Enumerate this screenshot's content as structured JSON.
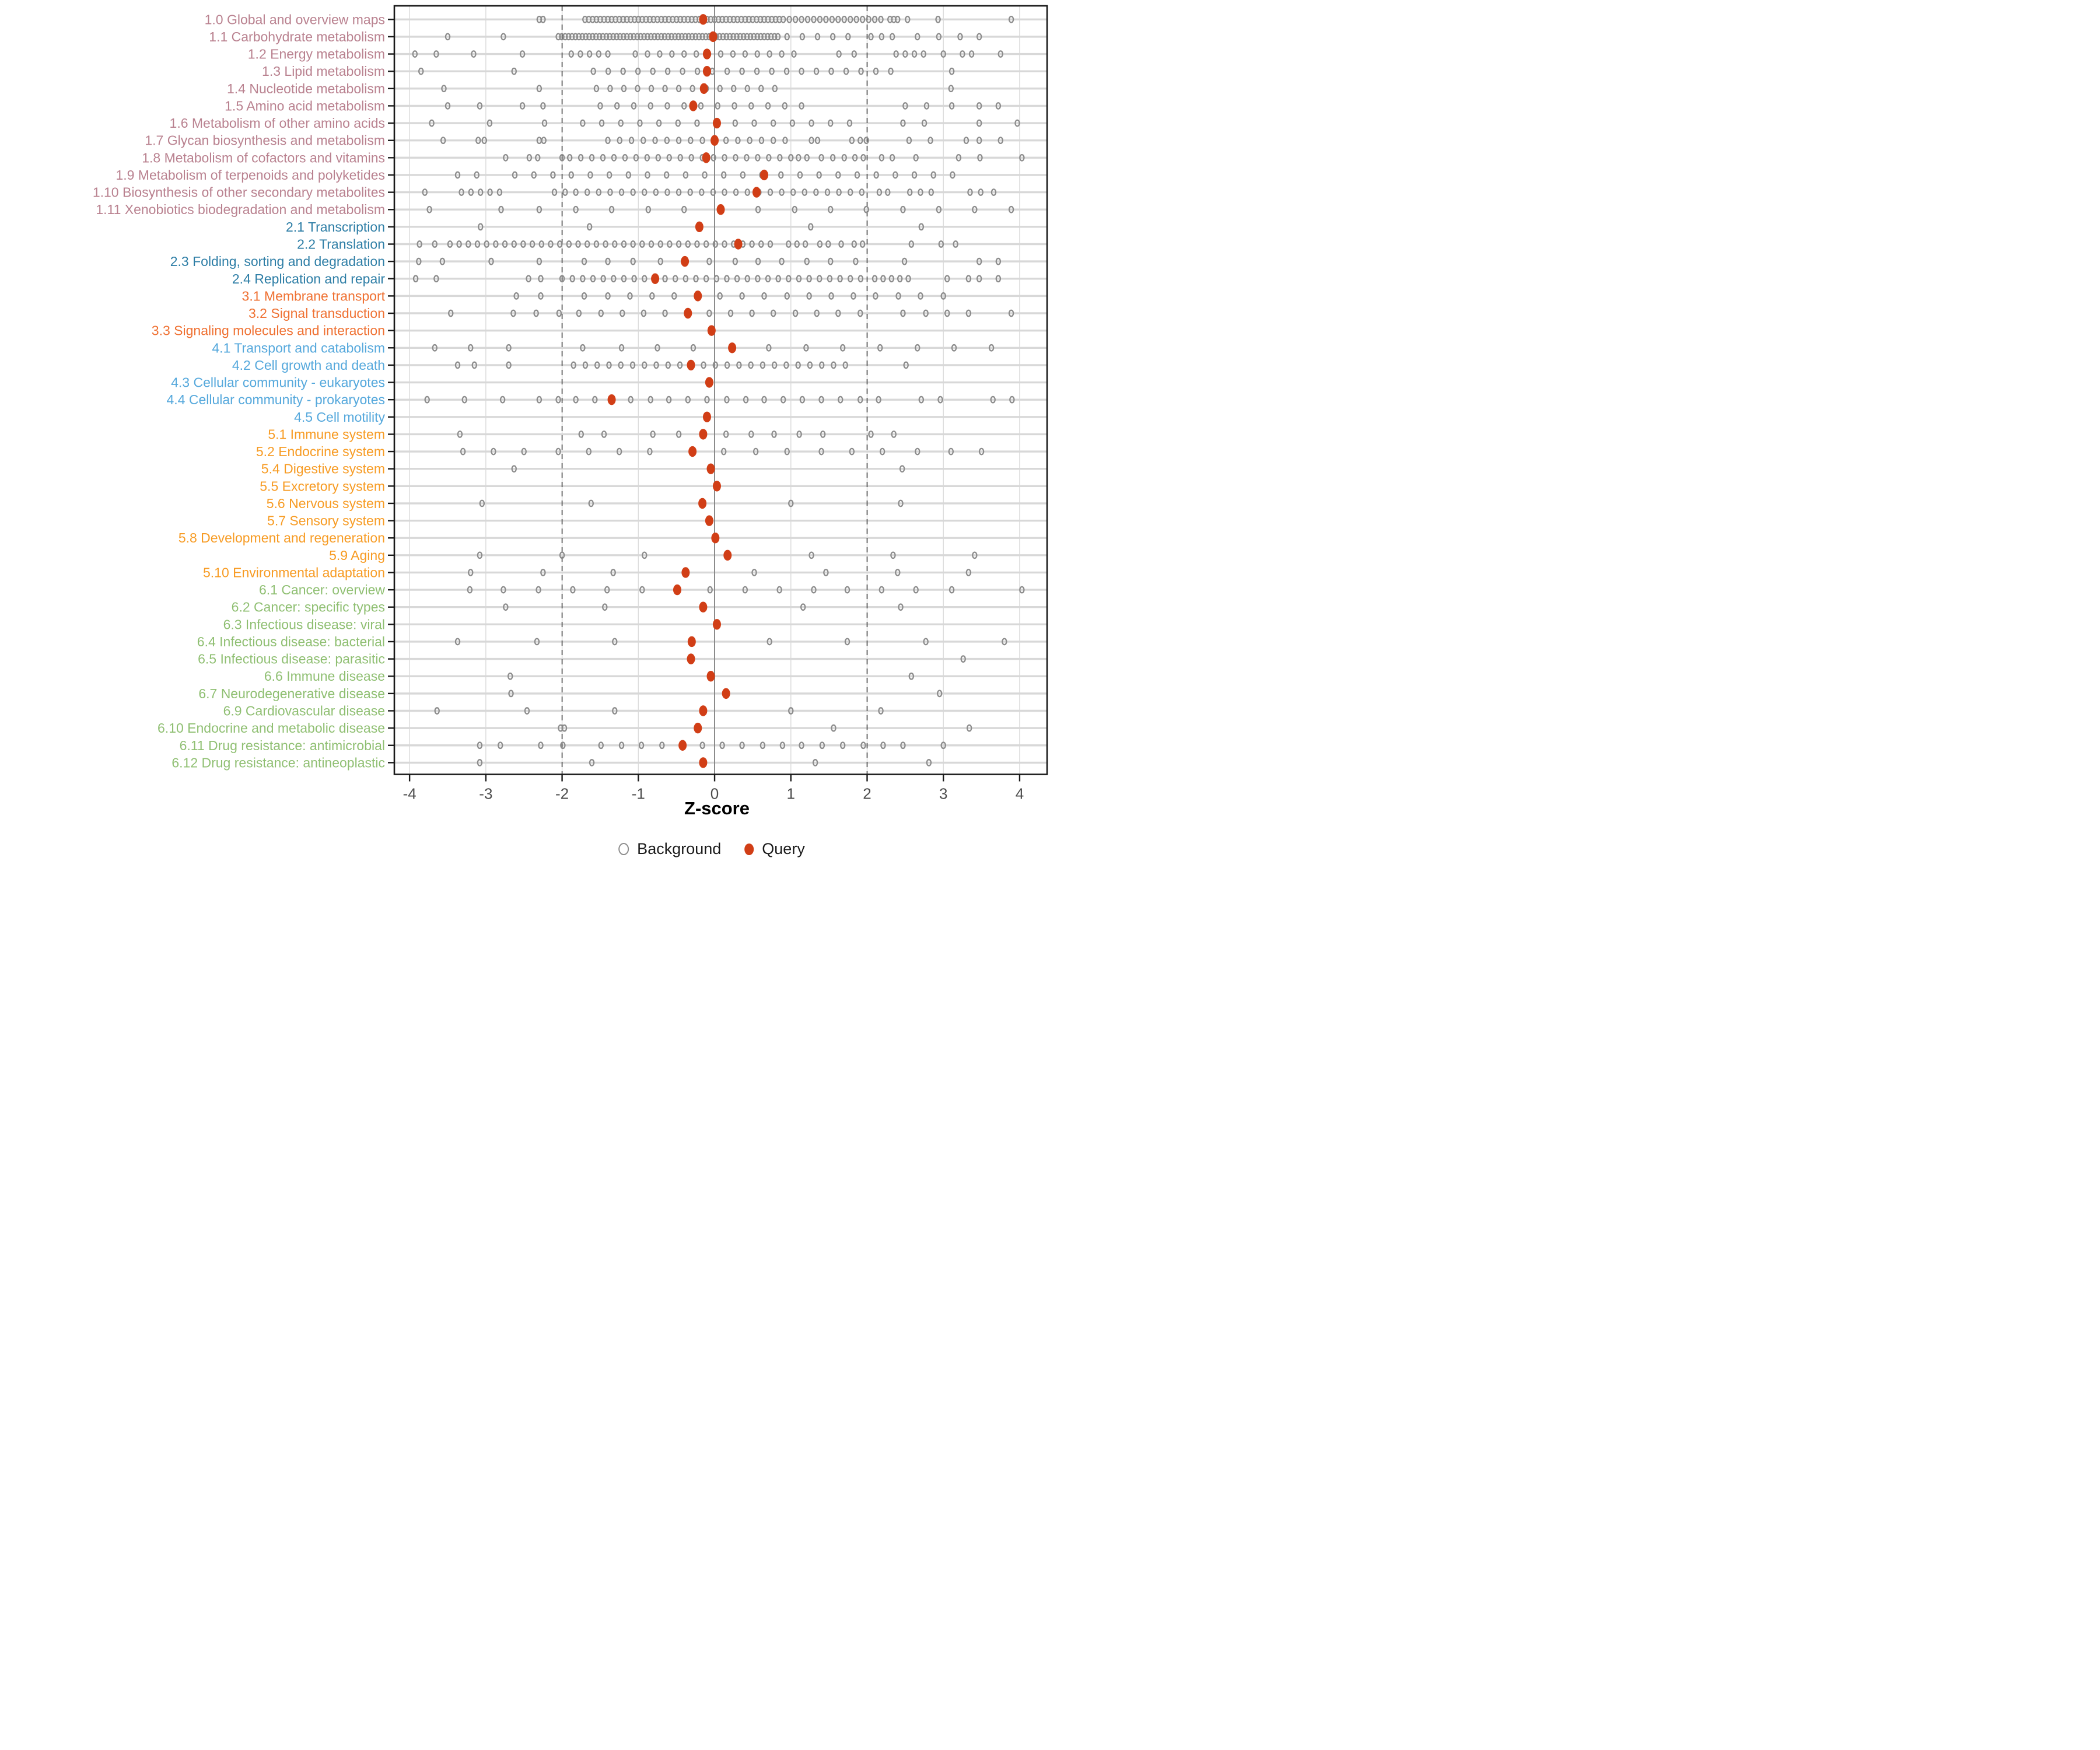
{
  "figure": {
    "xlabel": "Z-score",
    "legend": {
      "background_label": "Background",
      "query_label": "Query"
    },
    "colors": {
      "query": "#d13e16",
      "background_stroke": "#8c8c8c",
      "grid_minor": "#dcdcdc",
      "row_band": "#d8d8d8",
      "zero_line": "#808080",
      "dashed_line": "#4d4d4d",
      "axis_text": "#4d4d4d",
      "frame": "#1a1a1a",
      "groups": {
        "1": "#b9818f",
        "2": "#2e7ea6",
        "3": "#ef7031",
        "4": "#55a8dc",
        "5": "#f79b23",
        "6": "#8fbf72"
      }
    }
  },
  "chart_data": {
    "type": "scatter",
    "title": "",
    "xlabel": "Z-score",
    "xlim": [
      -4.2,
      4.36
    ],
    "x_ticks": [
      -4,
      -3,
      -2,
      -1,
      0,
      1,
      2,
      3,
      4
    ],
    "reference_lines": {
      "solid": 0,
      "dashed": [
        -2,
        2
      ]
    },
    "legend": [
      "Background",
      "Query"
    ],
    "legend_position": "bottom",
    "grid": true,
    "rows": [
      {
        "label": "1.0 Global and overview maps",
        "group": "1",
        "query": -0.15,
        "bg_runs": [
          [
            -1.7,
            0.85,
            0.05
          ],
          [
            0.9,
            2.2,
            0.08
          ]
        ],
        "bg": [
          -2.3,
          -2.25,
          2.3,
          2.35,
          2.4,
          2.53,
          2.93,
          3.89
        ]
      },
      {
        "label": "1.1 Carbohydrate metabolism",
        "group": "1",
        "query": -0.02,
        "bg_runs": [
          [
            -2.05,
            0.85,
            0.045
          ],
          [
            0.95,
            1.8,
            0.2
          ]
        ],
        "bg": [
          -3.5,
          -2.77,
          2.05,
          2.19,
          2.33,
          2.66,
          2.94,
          3.22,
          3.47
        ]
      },
      {
        "label": "1.2 Energy metabolism",
        "group": "1",
        "query": -0.1,
        "bg_runs": [
          [
            -1.88,
            -1.4,
            0.12
          ],
          [
            -1.04,
            1.11,
            0.16
          ]
        ],
        "bg": [
          -3.93,
          -3.65,
          -3.16,
          -2.52,
          1.63,
          1.83,
          2.38,
          2.5,
          2.62,
          2.74,
          3.0,
          3.25,
          3.37,
          3.75
        ]
      },
      {
        "label": "1.3 Lipid metabolism",
        "group": "1",
        "query": -0.1,
        "bg_runs": [
          [
            -1.59,
            2.44,
            0.195
          ]
        ],
        "bg": [
          -3.85,
          -2.63,
          3.11
        ]
      },
      {
        "label": "1.4 Nucleotide metabolism",
        "group": "1",
        "query": -0.14,
        "bg_runs": [
          [
            -1.55,
            0.9,
            0.18
          ]
        ],
        "bg": [
          -3.55,
          -2.3,
          3.1
        ]
      },
      {
        "label": "1.5 Amino acid metabolism",
        "group": "1",
        "query": -0.28,
        "bg_runs": [
          [
            -1.5,
            1.15,
            0.22
          ]
        ],
        "bg": [
          -3.5,
          -3.08,
          -2.52,
          -2.25,
          2.5,
          2.78,
          3.11,
          3.47,
          3.72
        ]
      },
      {
        "label": "1.6 Metabolism of other amino acids",
        "group": "1",
        "query": 0.03,
        "bg_runs": [
          [
            -1.73,
            2.0,
            0.25
          ]
        ],
        "bg": [
          -3.71,
          -2.95,
          -2.23,
          2.47,
          2.75,
          3.47,
          3.97
        ]
      },
      {
        "label": "1.7 Glycan biosynthesis and metabolism",
        "group": "1",
        "query": 0.0,
        "bg_runs": [
          [
            -1.4,
            1.02,
            0.155
          ]
        ],
        "bg": [
          -3.56,
          -3.1,
          -3.02,
          -2.3,
          -2.24,
          1.27,
          1.35,
          1.8,
          1.91,
          1.99,
          2.55,
          2.83,
          3.3,
          3.47,
          3.75
        ]
      },
      {
        "label": "1.8 Metabolism of cofactors and vitamins",
        "group": "1",
        "query": -0.11,
        "bg_runs": [
          [
            -1.9,
            1.0,
            0.145
          ]
        ],
        "bg": [
          -2.74,
          -2.43,
          -2.32,
          -2.0,
          1.1,
          1.21,
          1.4,
          1.55,
          1.7,
          1.84,
          1.95,
          2.19,
          2.33,
          2.64,
          3.2,
          3.48,
          4.03
        ]
      },
      {
        "label": "1.9 Metabolism of terpenoids and polyketides",
        "group": "1",
        "query": 0.65,
        "bg_runs": [
          [
            -1.88,
            3.2,
            0.25
          ]
        ],
        "bg": [
          -3.37,
          -3.12,
          -2.62,
          -2.37,
          -2.12
        ]
      },
      {
        "label": "1.10 Biosynthesis of other secondary metabolites",
        "group": "1",
        "query": 0.55,
        "bg_runs": [
          [
            -3.32,
            -2.82,
            0.125
          ],
          [
            -1.82,
            1.94,
            0.15
          ]
        ],
        "bg": [
          -3.8,
          -2.1,
          -1.96,
          2.16,
          2.27,
          2.56,
          2.7,
          2.84,
          3.35,
          3.49,
          3.66
        ]
      },
      {
        "label": "1.11 Xenobiotics biodegradation and metabolism",
        "group": "1",
        "query": 0.08,
        "bg_runs": [],
        "bg": [
          -3.74,
          -2.8,
          -2.3,
          -1.82,
          -1.35,
          -0.87,
          -0.4,
          0.57,
          1.05,
          1.52,
          1.99,
          2.47,
          2.94,
          3.41,
          3.89
        ]
      },
      {
        "label": "2.1 Transcription",
        "group": "2",
        "query": -0.2,
        "bg_runs": [],
        "bg": [
          -3.07,
          -1.64,
          1.26,
          2.71
        ]
      },
      {
        "label": "2.2 Translation",
        "group": "2",
        "query": 0.31,
        "bg_runs": [
          [
            -3.47,
            0.82,
            0.12
          ]
        ],
        "bg": [
          -3.87,
          -3.67,
          0.97,
          1.08,
          1.19,
          1.38,
          1.49,
          1.66,
          1.83,
          1.94,
          2.58,
          2.97,
          3.16
        ]
      },
      {
        "label": "2.3 Folding, sorting and degradation",
        "group": "2",
        "query": -0.39,
        "bg_runs": [],
        "bg": [
          -3.88,
          -3.57,
          -2.93,
          -2.3,
          -1.71,
          -1.4,
          -1.07,
          -0.71,
          -0.07,
          0.27,
          0.57,
          0.88,
          1.21,
          1.52,
          1.85,
          2.49,
          3.47,
          3.72
        ]
      },
      {
        "label": "2.4 Replication and repair",
        "group": "2",
        "query": -0.78,
        "bg_runs": [
          [
            -2.0,
            2.0,
            0.135
          ]
        ],
        "bg": [
          -3.92,
          -3.65,
          -2.44,
          -2.28,
          2.1,
          2.21,
          2.32,
          2.43,
          2.54,
          3.05,
          3.33,
          3.47,
          3.72
        ]
      },
      {
        "label": "3.1 Membrane transport",
        "group": "3",
        "query": -0.22,
        "bg_runs": [],
        "bg": [
          -2.6,
          -2.28,
          -1.71,
          -1.4,
          -1.11,
          -0.82,
          -0.53,
          0.07,
          0.36,
          0.65,
          0.95,
          1.24,
          1.53,
          1.82,
          2.11,
          2.41,
          2.7,
          3.0
        ]
      },
      {
        "label": "3.2 Signal transduction",
        "group": "3",
        "query": -0.35,
        "bg_runs": [],
        "bg": [
          -3.46,
          -2.64,
          -2.34,
          -2.04,
          -1.78,
          -1.49,
          -1.21,
          -0.93,
          -0.65,
          -0.07,
          0.21,
          0.49,
          0.77,
          1.06,
          1.34,
          1.62,
          1.91,
          2.47,
          2.77,
          3.05,
          3.33,
          3.89
        ]
      },
      {
        "label": "3.3 Signaling molecules and interaction",
        "group": "3",
        "query": -0.04,
        "bg_runs": [],
        "bg": []
      },
      {
        "label": "4.1 Transport and catabolism",
        "group": "4",
        "query": 0.23,
        "bg_runs": [],
        "bg": [
          -3.67,
          -3.2,
          -2.7,
          -1.73,
          -1.22,
          -0.75,
          -0.28,
          0.71,
          1.2,
          1.68,
          2.17,
          2.66,
          3.14,
          3.63
        ]
      },
      {
        "label": "4.2 Cell growth and death",
        "group": "4",
        "query": -0.31,
        "bg_runs": [
          [
            -1.85,
            1.85,
            0.155
          ]
        ],
        "bg": [
          -3.37,
          -3.15,
          -2.7,
          2.51
        ]
      },
      {
        "label": "4.3 Cellular community - eukaryotes",
        "group": "4",
        "query": -0.07,
        "bg_runs": [],
        "bg": []
      },
      {
        "label": "4.4 Cellular community - prokaryotes",
        "group": "4",
        "query": -1.35,
        "bg_runs": [],
        "bg": [
          -3.77,
          -3.28,
          -2.78,
          -2.3,
          -2.05,
          -1.82,
          -1.57,
          -1.1,
          -0.84,
          -0.6,
          -0.35,
          -0.1,
          0.16,
          0.41,
          0.65,
          0.9,
          1.15,
          1.4,
          1.65,
          1.91,
          2.15,
          2.71,
          2.96,
          3.65,
          3.9
        ]
      },
      {
        "label": "4.5 Cell motility",
        "group": "4",
        "query": -0.1,
        "bg_runs": [],
        "bg": []
      },
      {
        "label": "5.1 Immune system",
        "group": "5",
        "query": -0.15,
        "bg_runs": [],
        "bg": [
          -3.34,
          -1.75,
          -1.45,
          -0.81,
          -0.47,
          0.15,
          0.48,
          0.78,
          1.11,
          1.42,
          2.05,
          2.35
        ]
      },
      {
        "label": "5.2 Endocrine system",
        "group": "5",
        "query": -0.29,
        "bg_runs": [],
        "bg": [
          -3.3,
          -2.9,
          -2.5,
          -2.05,
          -1.65,
          -1.25,
          -0.85,
          0.12,
          0.54,
          0.95,
          1.4,
          1.8,
          2.2,
          2.66,
          3.1,
          3.5
        ]
      },
      {
        "label": "5.4 Digestive system",
        "group": "5",
        "query": -0.05,
        "bg_runs": [],
        "bg": [
          -2.63,
          2.46
        ]
      },
      {
        "label": "5.5 Excretory system",
        "group": "5",
        "query": 0.03,
        "bg_runs": [],
        "bg": []
      },
      {
        "label": "5.6 Nervous system",
        "group": "5",
        "query": -0.16,
        "bg_runs": [],
        "bg": [
          -3.05,
          -1.62,
          1.0,
          2.44
        ]
      },
      {
        "label": "5.7 Sensory system",
        "group": "5",
        "query": -0.07,
        "bg_runs": [],
        "bg": []
      },
      {
        "label": "5.8 Development and regeneration",
        "group": "5",
        "query": 0.01,
        "bg_runs": [],
        "bg": []
      },
      {
        "label": "5.9 Aging",
        "group": "5",
        "query": 0.17,
        "bg_runs": [],
        "bg": [
          -3.08,
          -2.0,
          -0.92,
          1.27,
          2.34,
          3.41
        ]
      },
      {
        "label": "5.10 Environmental adaptation",
        "group": "5",
        "query": -0.38,
        "bg_runs": [],
        "bg": [
          -3.2,
          -2.25,
          -1.33,
          0.52,
          1.46,
          2.4,
          3.33
        ]
      },
      {
        "label": "6.1 Cancer: overview",
        "group": "6",
        "query": -0.49,
        "bg_runs": [],
        "bg": [
          -3.21,
          -2.77,
          -2.31,
          -1.86,
          -1.41,
          -0.95,
          -0.06,
          0.4,
          0.85,
          1.3,
          1.74,
          2.19,
          2.64,
          3.11,
          4.03
        ]
      },
      {
        "label": "6.2 Cancer: specific types",
        "group": "6",
        "query": -0.15,
        "bg_runs": [],
        "bg": [
          -2.74,
          -1.44,
          1.16,
          2.44
        ]
      },
      {
        "label": "6.3 Infectious disease: viral",
        "group": "6",
        "query": 0.03,
        "bg_runs": [],
        "bg": []
      },
      {
        "label": "6.4 Infectious disease: bacterial",
        "group": "6",
        "query": -0.3,
        "bg_runs": [],
        "bg": [
          -3.37,
          -2.33,
          -1.31,
          0.72,
          1.74,
          2.77,
          3.8
        ]
      },
      {
        "label": "6.5 Infectious disease: parasitic",
        "group": "6",
        "query": -0.31,
        "bg_runs": [],
        "bg": [
          3.26
        ]
      },
      {
        "label": "6.6 Immune disease",
        "group": "6",
        "query": -0.05,
        "bg_runs": [],
        "bg": [
          -2.68,
          2.58
        ]
      },
      {
        "label": "6.7 Neurodegenerative disease",
        "group": "6",
        "query": 0.15,
        "bg_runs": [],
        "bg": [
          -2.67,
          2.95
        ]
      },
      {
        "label": "6.9 Cardiovascular disease",
        "group": "6",
        "query": -0.15,
        "bg_runs": [],
        "bg": [
          -3.64,
          -2.46,
          -1.31,
          1.0,
          2.18
        ]
      },
      {
        "label": "6.10 Endocrine and metabolic disease",
        "group": "6",
        "query": -0.22,
        "bg_runs": [],
        "bg": [
          -2.02,
          -1.97,
          1.56,
          3.34
        ]
      },
      {
        "label": "6.11 Drug resistance: antimicrobial",
        "group": "6",
        "query": -0.42,
        "bg_runs": [],
        "bg": [
          -3.08,
          -2.81,
          -2.28,
          -1.99,
          -1.49,
          -1.22,
          -0.96,
          -0.69,
          -0.16,
          0.1,
          0.36,
          0.63,
          0.89,
          1.14,
          1.41,
          1.68,
          1.95,
          2.21,
          2.47,
          3.0
        ]
      },
      {
        "label": "6.12 Drug resistance: antineoplastic",
        "group": "6",
        "query": -0.15,
        "bg_runs": [],
        "bg": [
          -3.08,
          -1.61,
          1.32,
          2.81
        ]
      }
    ]
  }
}
